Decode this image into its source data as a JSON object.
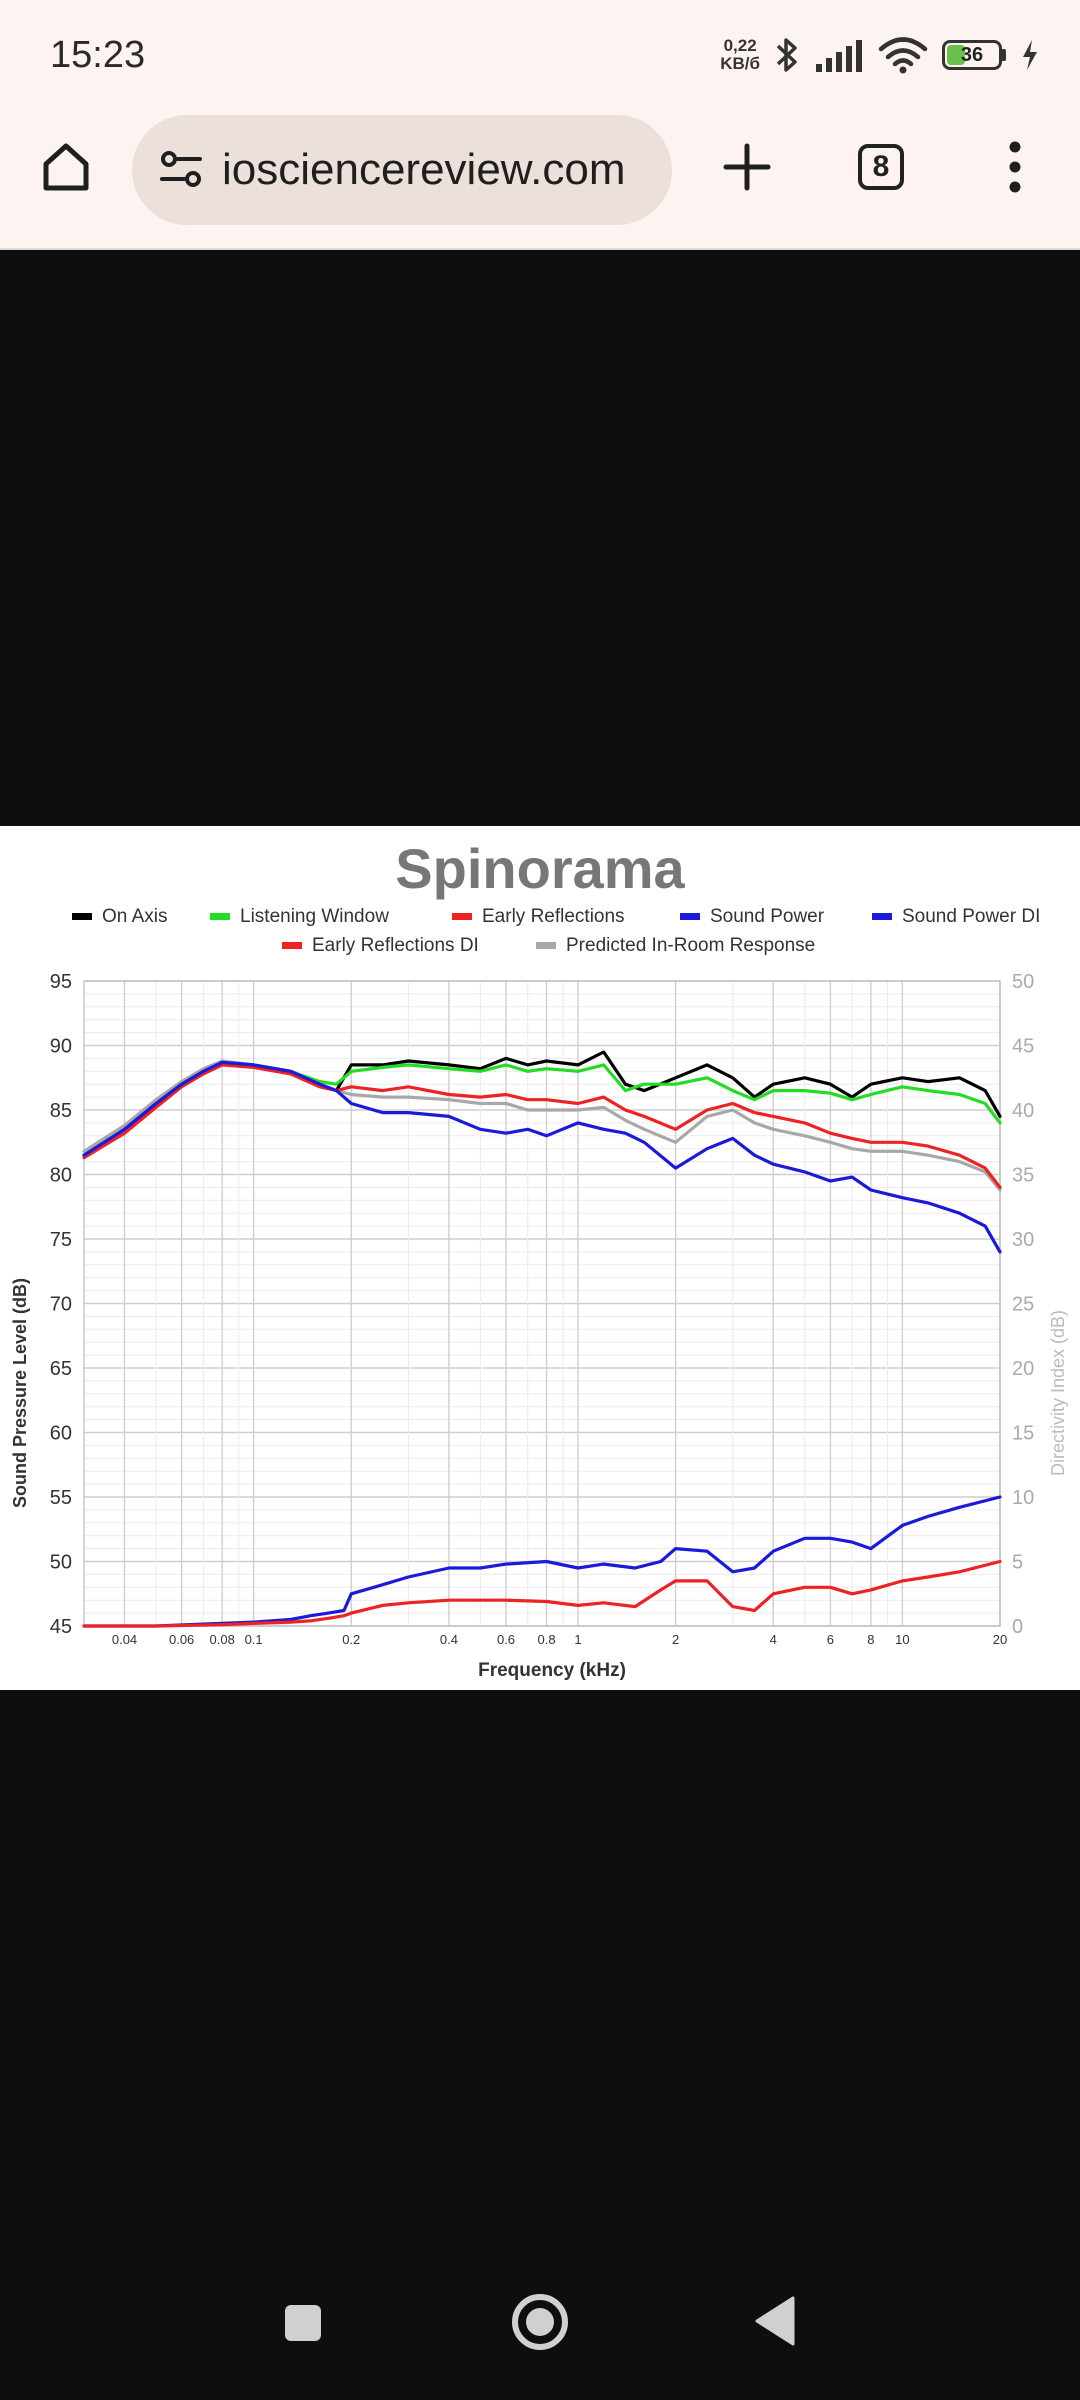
{
  "status_bar": {
    "time": "15:23",
    "net_speed_value": "0,22",
    "net_speed_unit": "KB/б",
    "battery_level": "36",
    "battery_fraction": 0.36,
    "icons": [
      "bluetooth-icon",
      "signal-icon",
      "wifi-icon",
      "battery-icon",
      "charging-icon"
    ]
  },
  "browser": {
    "url": "iosciencereview.com",
    "tab_count": "8",
    "icons": [
      "home-icon",
      "site-settings-icon",
      "new-tab-icon",
      "tabs-icon",
      "menu-icon"
    ]
  },
  "nav_bar": {
    "icons": [
      "recents-icon",
      "home-circle-icon",
      "back-icon"
    ]
  },
  "colors": {
    "status_bg": "#fdf4f1",
    "url_pill": "#ece0db",
    "page_bg": "#0e0e0e",
    "on_axis": "#000000",
    "listening_window": "#22dd22",
    "early_reflections": "#ee2222",
    "sound_power": "#1a1adb",
    "sound_power_di": "#1a1adb",
    "early_reflections_di": "#ee2222",
    "predicted_in_room": "#a8a8a8"
  },
  "chart_data": {
    "type": "line",
    "title": "Spinorama",
    "xlabel": "Frequency (kHz)",
    "ylabel": "Sound Pressure Level (dB)",
    "y2label": "Directivity Index (dB)",
    "xscale": "log",
    "xlim": [
      0.03,
      20
    ],
    "ylim": [
      45,
      95
    ],
    "y2lim": [
      0,
      50
    ],
    "grid": true,
    "legend_position": "top",
    "x_ticks": [
      "0.04",
      "0.06",
      "0.08",
      "0.1",
      "0.2",
      "0.4",
      "0.6",
      "0.8",
      "1",
      "2",
      "4",
      "6",
      "8",
      "10",
      "20"
    ],
    "y_ticks": [
      "45",
      "50",
      "55",
      "60",
      "65",
      "70",
      "75",
      "80",
      "85",
      "90",
      "95"
    ],
    "y2_ticks": [
      "0",
      "5",
      "10",
      "15",
      "20",
      "25",
      "30",
      "35",
      "40",
      "45",
      "50"
    ],
    "series": [
      {
        "name": "On Axis",
        "color": "#000000",
        "axis": "left",
        "x": [
          0.03,
          0.04,
          0.05,
          0.06,
          0.07,
          0.08,
          0.1,
          0.13,
          0.16,
          0.18,
          0.2,
          0.25,
          0.3,
          0.4,
          0.5,
          0.6,
          0.7,
          0.8,
          1.0,
          1.2,
          1.4,
          1.6,
          2.0,
          2.5,
          3.0,
          3.5,
          4.0,
          5.0,
          6.0,
          7.0,
          8.0,
          10.0,
          12.0,
          15.0,
          18.0,
          20.0
        ],
        "y": [
          81.5,
          83.5,
          85.5,
          87,
          88,
          88.7,
          88.5,
          88,
          87,
          86.5,
          88.5,
          88.5,
          88.8,
          88.5,
          88.2,
          89,
          88.5,
          88.8,
          88.5,
          89.5,
          87,
          86.5,
          87.5,
          88.5,
          87.5,
          86,
          87,
          87.5,
          87,
          86,
          87,
          87.5,
          87.2,
          87.5,
          86.5,
          84.5
        ]
      },
      {
        "name": "Listening Window",
        "color": "#22dd22",
        "axis": "left",
        "x": [
          0.03,
          0.04,
          0.05,
          0.06,
          0.07,
          0.08,
          0.1,
          0.13,
          0.16,
          0.18,
          0.2,
          0.25,
          0.3,
          0.4,
          0.5,
          0.6,
          0.7,
          0.8,
          1.0,
          1.2,
          1.4,
          1.6,
          2.0,
          2.5,
          3.0,
          3.5,
          4.0,
          5.0,
          6.0,
          7.0,
          8.0,
          10.0,
          12.0,
          15.0,
          18.0,
          20.0
        ],
        "y": [
          81.5,
          83.5,
          85.5,
          87,
          88,
          88.7,
          88.5,
          88,
          87.2,
          87,
          88,
          88.3,
          88.5,
          88.2,
          88,
          88.5,
          88,
          88.2,
          88,
          88.5,
          86.5,
          87,
          87,
          87.5,
          86.5,
          85.8,
          86.5,
          86.5,
          86.3,
          85.8,
          86.2,
          86.8,
          86.5,
          86.2,
          85.5,
          84
        ]
      },
      {
        "name": "Early Reflections",
        "color": "#ee2222",
        "axis": "left",
        "x": [
          0.03,
          0.04,
          0.05,
          0.06,
          0.07,
          0.08,
          0.1,
          0.13,
          0.16,
          0.18,
          0.2,
          0.25,
          0.3,
          0.4,
          0.5,
          0.6,
          0.7,
          0.8,
          1.0,
          1.2,
          1.4,
          1.6,
          2.0,
          2.5,
          3.0,
          3.5,
          4.0,
          5.0,
          6.0,
          7.0,
          8.0,
          10.0,
          12.0,
          15.0,
          18.0,
          20.0
        ],
        "y": [
          81.3,
          83.2,
          85.2,
          86.8,
          87.8,
          88.5,
          88.3,
          87.8,
          86.8,
          86.5,
          86.8,
          86.5,
          86.8,
          86.2,
          86,
          86.2,
          85.8,
          85.8,
          85.5,
          86,
          85,
          84.5,
          83.5,
          85,
          85.5,
          84.8,
          84.5,
          84,
          83.2,
          82.8,
          82.5,
          82.5,
          82.2,
          81.5,
          80.5,
          79
        ]
      },
      {
        "name": "Sound Power",
        "color": "#1a1adb",
        "axis": "left",
        "x": [
          0.03,
          0.04,
          0.05,
          0.06,
          0.07,
          0.08,
          0.1,
          0.13,
          0.16,
          0.18,
          0.2,
          0.25,
          0.3,
          0.4,
          0.5,
          0.6,
          0.7,
          0.8,
          1.0,
          1.2,
          1.4,
          1.6,
          2.0,
          2.5,
          3.0,
          3.5,
          4.0,
          5.0,
          6.0,
          7.0,
          8.0,
          10.0,
          12.0,
          15.0,
          18.0,
          20.0
        ],
        "y": [
          81.5,
          83.5,
          85.5,
          87,
          88,
          88.7,
          88.5,
          88,
          87,
          86.5,
          85.5,
          84.8,
          84.8,
          84.5,
          83.5,
          83.2,
          83.5,
          83,
          84,
          83.5,
          83.2,
          82.5,
          80.5,
          82,
          82.8,
          81.5,
          80.8,
          80.2,
          79.5,
          79.8,
          78.8,
          78.2,
          77.8,
          77,
          76,
          74
        ]
      },
      {
        "name": "Sound Power DI",
        "color": "#1a1adb",
        "axis": "right",
        "x": [
          0.03,
          0.05,
          0.08,
          0.1,
          0.13,
          0.15,
          0.17,
          0.19,
          0.2,
          0.25,
          0.3,
          0.4,
          0.5,
          0.6,
          0.8,
          1.0,
          1.2,
          1.5,
          1.8,
          2.0,
          2.5,
          3.0,
          3.5,
          4.0,
          5.0,
          6.0,
          7.0,
          8.0,
          10.0,
          12.0,
          15.0,
          20.0
        ],
        "y": [
          0,
          0,
          0.2,
          0.3,
          0.5,
          0.8,
          1,
          1.2,
          2.5,
          3.2,
          3.8,
          4.5,
          4.5,
          4.8,
          5,
          4.5,
          4.8,
          4.5,
          5,
          6,
          5.8,
          4.2,
          4.5,
          5.8,
          6.8,
          6.8,
          6.5,
          6,
          7.8,
          8.5,
          9.2,
          10
        ]
      },
      {
        "name": "Early Reflections DI",
        "color": "#ee2222",
        "axis": "right",
        "x": [
          0.03,
          0.05,
          0.08,
          0.1,
          0.13,
          0.15,
          0.17,
          0.19,
          0.2,
          0.25,
          0.3,
          0.4,
          0.5,
          0.6,
          0.8,
          1.0,
          1.2,
          1.5,
          1.8,
          2.0,
          2.5,
          3.0,
          3.5,
          4.0,
          5.0,
          6.0,
          7.0,
          8.0,
          10.0,
          12.0,
          15.0,
          20.0
        ],
        "y": [
          0,
          0,
          0.1,
          0.2,
          0.3,
          0.4,
          0.6,
          0.8,
          1,
          1.6,
          1.8,
          2,
          2,
          2,
          1.9,
          1.6,
          1.8,
          1.5,
          2.8,
          3.5,
          3.5,
          1.5,
          1.2,
          2.5,
          3,
          3,
          2.5,
          2.8,
          3.5,
          3.8,
          4.2,
          5
        ]
      },
      {
        "name": "Predicted In-Room Response",
        "color": "#a8a8a8",
        "axis": "left",
        "x": [
          0.03,
          0.04,
          0.05,
          0.06,
          0.07,
          0.08,
          0.1,
          0.13,
          0.16,
          0.18,
          0.2,
          0.25,
          0.3,
          0.4,
          0.5,
          0.6,
          0.7,
          0.8,
          1.0,
          1.2,
          1.4,
          1.6,
          2.0,
          2.5,
          3.0,
          3.5,
          4.0,
          5.0,
          6.0,
          7.0,
          8.0,
          10.0,
          12.0,
          15.0,
          18.0,
          20.0
        ],
        "y": [
          81.8,
          83.8,
          85.8,
          87.2,
          88.2,
          88.8,
          88.5,
          88,
          87,
          86.5,
          86.2,
          86,
          86,
          85.8,
          85.5,
          85.5,
          85,
          85,
          85,
          85.2,
          84.2,
          83.5,
          82.5,
          84.5,
          85,
          84,
          83.5,
          83,
          82.5,
          82,
          81.8,
          81.8,
          81.5,
          81,
          80.2,
          78.8
        ]
      }
    ]
  }
}
